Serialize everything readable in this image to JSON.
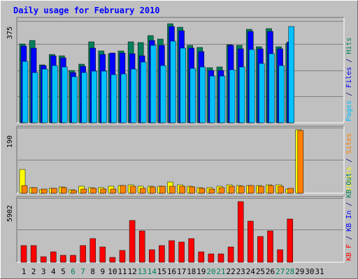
{
  "chart_data": {
    "type": "bar",
    "title": "Daily usage for February 2010",
    "categories": [
      "1",
      "2",
      "3",
      "4",
      "5",
      "6",
      "7",
      "8",
      "9",
      "10",
      "11",
      "12",
      "13",
      "14",
      "15",
      "16",
      "17",
      "18",
      "19",
      "20",
      "21",
      "22",
      "23",
      "24",
      "25",
      "26",
      "27",
      "28",
      "29",
      "30",
      "31"
    ],
    "weekend_days": [
      "6",
      "7",
      "13",
      "14",
      "20",
      "21",
      "27",
      "28"
    ],
    "panels": [
      {
        "id": "top",
        "ymax_label": "375",
        "ymax": 375,
        "axis_label_parts": [
          {
            "text": "Pages",
            "color": "#00c0ff"
          },
          {
            "text": " / ",
            "color": "#000080"
          },
          {
            "text": "Files",
            "color": "#0000ff"
          },
          {
            "text": " / ",
            "color": "#000080"
          },
          {
            "text": "Hits",
            "color": "#00805c"
          }
        ],
        "series": [
          {
            "name": "Hits",
            "color": "#00805c",
            "values": [
              288,
              300,
              212,
              250,
              244,
              192,
              214,
              297,
              264,
              253,
              264,
              296,
              294,
              318,
              306,
              362,
              350,
              284,
              276,
              202,
              204,
              285,
              283,
              342,
              279,
              344,
              277,
              292,
              0,
              0,
              0
            ]
          },
          {
            "name": "Files",
            "color": "#0000ff",
            "values": [
              280,
              272,
              209,
              244,
              237,
              184,
              207,
              272,
              250,
              254,
              256,
              252,
              244,
              300,
              282,
              352,
              338,
              272,
              260,
              191,
              191,
              282,
              270,
              335,
              270,
              335,
              270,
              297,
              0,
              0,
              0
            ]
          },
          {
            "name": "Pages",
            "color": "#00c0ff",
            "values": [
              224,
              184,
              196,
              210,
              205,
              168,
              184,
              188,
              188,
              175,
              178,
              196,
              222,
              282,
              208,
              298,
              274,
              200,
              204,
              170,
              170,
              194,
              205,
              268,
              218,
              252,
              210,
              352,
              0,
              0,
              0
            ]
          }
        ]
      },
      {
        "id": "middle",
        "ymax_label": "190",
        "ymax": 190,
        "axis_label_parts": [
          {
            "text": "Visits",
            "color": "#ffff00"
          },
          {
            "text": " / ",
            "color": "#000080"
          },
          {
            "text": "Sites",
            "color": "#ff8000"
          }
        ],
        "series": [
          {
            "name": "Visits",
            "color": "#ffff00",
            "values": [
              70,
              17,
              11,
              14,
              19,
              10,
              20,
              17,
              17,
              20,
              23,
              24,
              20,
              20,
              20,
              33,
              24,
              21,
              16,
              16,
              20,
              24,
              22,
              22,
              23,
              24,
              25,
              12,
              187,
              0,
              0
            ]
          },
          {
            "name": "Sites",
            "color": "#ff8000",
            "values": [
              23,
              17,
              12,
              14,
              17,
              8,
              13,
              15,
              13,
              12,
              22,
              20,
              15,
              18,
              21,
              21,
              21,
              18,
              14,
              12,
              16,
              21,
              21,
              22,
              21,
              22,
              21,
              15,
              186,
              0,
              0
            ]
          }
        ]
      },
      {
        "id": "bottom",
        "ymax_label": "5902",
        "ymax": 5902,
        "axis_label_parts": [
          {
            "text": "KB F",
            "color": "#ff0000"
          },
          {
            "text": " / ",
            "color": "#000080"
          },
          {
            "text": "KB In",
            "color": "#0000ff"
          },
          {
            "text": " / ",
            "color": "#000080"
          },
          {
            "text": "KB Out",
            "color": "#00805c"
          }
        ],
        "series": [
          {
            "name": "KB F",
            "color": "#ff0000",
            "values": [
              1600,
              1600,
              520,
              980,
              640,
              640,
              1600,
              2200,
              1440,
              460,
              1120,
              3920,
              2940,
              1210,
              1600,
              2020,
              1920,
              2220,
              1000,
              780,
              780,
              1440,
              5690,
              3880,
              2440,
              2960,
              1160,
              4040,
              0,
              0,
              0
            ]
          }
        ]
      }
    ]
  }
}
